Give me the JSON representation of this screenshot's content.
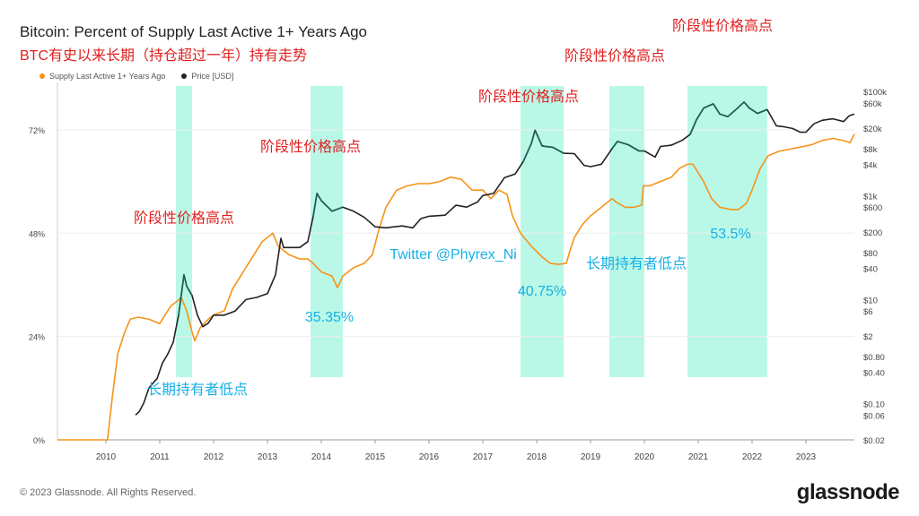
{
  "title": "Bitcoin: Percent of Supply Last Active 1+ Years Ago",
  "subtitle": "BTC有史以来长期（持仓超过一年）持有走势",
  "legend": [
    {
      "label": "Supply Last Active 1+ Years Ago",
      "color": "#f7931a"
    },
    {
      "label": "Price [USD]",
      "color": "#222222"
    }
  ],
  "footer": "© 2023 Glassnode. All Rights Reserved.",
  "logo": "glassnode",
  "colors": {
    "supply": "#f7931a",
    "price": "#222222",
    "price_high": "#1f5f55",
    "highlight": "#7ff2d4",
    "annot_red": "#e02020",
    "annot_blue": "#16b0e6"
  },
  "chart_data": {
    "type": "line",
    "x_ticks": [
      "2010",
      "2011",
      "2012",
      "2013",
      "2014",
      "2015",
      "2016",
      "2017",
      "2018",
      "2019",
      "2020",
      "2021",
      "2022",
      "2023"
    ],
    "y_left_ticks": [
      "0%",
      "24%",
      "48%",
      "72%"
    ],
    "y_left_range": [
      0,
      83
    ],
    "y_right_scale": "log",
    "y_right_ticks": [
      "$100k",
      "$60k",
      "$20k",
      "$8k",
      "$4k",
      "$1k",
      "$600",
      "$200",
      "$80",
      "$40",
      "$10",
      "$6",
      "$2",
      "$0.80",
      "$0.40",
      "$0.10",
      "$0.06",
      "$0.02"
    ],
    "y_right_range": [
      0.02,
      150000
    ],
    "x_range": [
      2009.1,
      2023.9
    ],
    "series": [
      {
        "name": "Supply Last Active 1+ Years Ago",
        "axis": "left",
        "points": [
          [
            2009.1,
            0
          ],
          [
            2010.03,
            0
          ],
          [
            2010.12,
            10
          ],
          [
            2010.22,
            20
          ],
          [
            2010.35,
            25
          ],
          [
            2010.45,
            28
          ],
          [
            2010.6,
            28.5
          ],
          [
            2010.8,
            28
          ],
          [
            2011.0,
            27
          ],
          [
            2011.1,
            29
          ],
          [
            2011.2,
            31
          ],
          [
            2011.4,
            33
          ],
          [
            2011.5,
            30
          ],
          [
            2011.6,
            25
          ],
          [
            2011.65,
            23
          ],
          [
            2011.75,
            26
          ],
          [
            2011.9,
            28
          ],
          [
            2012.0,
            29
          ],
          [
            2012.2,
            30
          ],
          [
            2012.35,
            35
          ],
          [
            2012.5,
            38
          ],
          [
            2012.7,
            42
          ],
          [
            2012.9,
            46
          ],
          [
            2013.0,
            47
          ],
          [
            2013.1,
            48
          ],
          [
            2013.2,
            45
          ],
          [
            2013.4,
            43
          ],
          [
            2013.6,
            42
          ],
          [
            2013.75,
            42
          ],
          [
            2013.85,
            41
          ],
          [
            2014.0,
            39
          ],
          [
            2014.2,
            38
          ],
          [
            2014.3,
            35.35
          ],
          [
            2014.4,
            38
          ],
          [
            2014.5,
            39
          ],
          [
            2014.6,
            40
          ],
          [
            2014.8,
            41
          ],
          [
            2014.95,
            43
          ],
          [
            2015.05,
            48
          ],
          [
            2015.2,
            54
          ],
          [
            2015.4,
            58
          ],
          [
            2015.6,
            59
          ],
          [
            2015.8,
            59.5
          ],
          [
            2016.0,
            59.5
          ],
          [
            2016.2,
            60
          ],
          [
            2016.4,
            61
          ],
          [
            2016.6,
            60.5
          ],
          [
            2016.8,
            58
          ],
          [
            2017.0,
            58
          ],
          [
            2017.15,
            56
          ],
          [
            2017.3,
            58
          ],
          [
            2017.45,
            57
          ],
          [
            2017.55,
            52
          ],
          [
            2017.7,
            48
          ],
          [
            2017.9,
            45
          ],
          [
            2018.1,
            42.5
          ],
          [
            2018.25,
            41
          ],
          [
            2018.4,
            40.75
          ],
          [
            2018.55,
            41
          ],
          [
            2018.62,
            44
          ],
          [
            2018.7,
            47
          ],
          [
            2018.85,
            50
          ],
          [
            2019.0,
            52
          ],
          [
            2019.2,
            54
          ],
          [
            2019.4,
            56
          ],
          [
            2019.5,
            55
          ],
          [
            2019.65,
            54
          ],
          [
            2019.8,
            54
          ],
          [
            2019.95,
            54.5
          ],
          [
            2019.98,
            59
          ],
          [
            2020.1,
            59
          ],
          [
            2020.3,
            60
          ],
          [
            2020.5,
            61
          ],
          [
            2020.65,
            63
          ],
          [
            2020.8,
            64
          ],
          [
            2020.9,
            64
          ],
          [
            2020.95,
            63
          ],
          [
            2021.1,
            60
          ],
          [
            2021.25,
            56
          ],
          [
            2021.4,
            54
          ],
          [
            2021.6,
            53.5
          ],
          [
            2021.75,
            53.5
          ],
          [
            2021.9,
            55
          ],
          [
            2022.0,
            58
          ],
          [
            2022.15,
            63
          ],
          [
            2022.3,
            66
          ],
          [
            2022.5,
            67
          ],
          [
            2022.7,
            67.5
          ],
          [
            2022.9,
            68
          ],
          [
            2023.1,
            68.5
          ],
          [
            2023.3,
            69.5
          ],
          [
            2023.5,
            70
          ],
          [
            2023.7,
            69.5
          ],
          [
            2023.82,
            69
          ],
          [
            2023.9,
            71
          ]
        ]
      },
      {
        "name": "Price [USD]",
        "axis": "right",
        "points": [
          [
            2010.55,
            0.06
          ],
          [
            2010.62,
            0.07
          ],
          [
            2010.7,
            0.1
          ],
          [
            2010.8,
            0.2
          ],
          [
            2010.88,
            0.25
          ],
          [
            2010.95,
            0.3
          ],
          [
            2011.05,
            0.6
          ],
          [
            2011.15,
            0.9
          ],
          [
            2011.25,
            1.5
          ],
          [
            2011.35,
            5
          ],
          [
            2011.45,
            30
          ],
          [
            2011.5,
            18
          ],
          [
            2011.6,
            12
          ],
          [
            2011.7,
            5
          ],
          [
            2011.8,
            3
          ],
          [
            2011.9,
            3.5
          ],
          [
            2012.0,
            5
          ],
          [
            2012.2,
            5
          ],
          [
            2012.4,
            6
          ],
          [
            2012.6,
            10
          ],
          [
            2012.8,
            11
          ],
          [
            2013.0,
            13
          ],
          [
            2013.15,
            30
          ],
          [
            2013.25,
            150
          ],
          [
            2013.3,
            100
          ],
          [
            2013.4,
            100
          ],
          [
            2013.6,
            100
          ],
          [
            2013.75,
            130
          ],
          [
            2013.85,
            400
          ],
          [
            2013.92,
            1100
          ],
          [
            2014.0,
            800
          ],
          [
            2014.2,
            500
          ],
          [
            2014.4,
            600
          ],
          [
            2014.6,
            500
          ],
          [
            2014.8,
            380
          ],
          [
            2015.0,
            250
          ],
          [
            2015.2,
            240
          ],
          [
            2015.5,
            260
          ],
          [
            2015.7,
            240
          ],
          [
            2015.85,
            360
          ],
          [
            2016.0,
            400
          ],
          [
            2016.3,
            420
          ],
          [
            2016.5,
            650
          ],
          [
            2016.7,
            600
          ],
          [
            2016.9,
            750
          ],
          [
            2017.0,
            1000
          ],
          [
            2017.2,
            1100
          ],
          [
            2017.4,
            2200
          ],
          [
            2017.6,
            2600
          ],
          [
            2017.75,
            4500
          ],
          [
            2017.9,
            10000
          ],
          [
            2017.97,
            18000
          ],
          [
            2018.1,
            9000
          ],
          [
            2018.3,
            8500
          ],
          [
            2018.5,
            6500
          ],
          [
            2018.7,
            6400
          ],
          [
            2018.88,
            3800
          ],
          [
            2019.0,
            3600
          ],
          [
            2019.2,
            4000
          ],
          [
            2019.4,
            8000
          ],
          [
            2019.5,
            11000
          ],
          [
            2019.7,
            9500
          ],
          [
            2019.9,
            7200
          ],
          [
            2020.0,
            7200
          ],
          [
            2020.2,
            5500
          ],
          [
            2020.3,
            8800
          ],
          [
            2020.5,
            9300
          ],
          [
            2020.7,
            11500
          ],
          [
            2020.85,
            15000
          ],
          [
            2020.97,
            29000
          ],
          [
            2021.1,
            48000
          ],
          [
            2021.28,
            58000
          ],
          [
            2021.4,
            37000
          ],
          [
            2021.55,
            33000
          ],
          [
            2021.7,
            45000
          ],
          [
            2021.85,
            63000
          ],
          [
            2021.95,
            48000
          ],
          [
            2022.1,
            38000
          ],
          [
            2022.28,
            45000
          ],
          [
            2022.45,
            22000
          ],
          [
            2022.6,
            21000
          ],
          [
            2022.75,
            19500
          ],
          [
            2022.9,
            16500
          ],
          [
            2023.0,
            16500
          ],
          [
            2023.15,
            24000
          ],
          [
            2023.3,
            28000
          ],
          [
            2023.5,
            30000
          ],
          [
            2023.7,
            26500
          ],
          [
            2023.8,
            34000
          ],
          [
            2023.9,
            37000
          ]
        ]
      }
    ],
    "highlight_bands": [
      [
        2011.3,
        2011.6
      ],
      [
        2013.8,
        2014.4
      ],
      [
        2017.7,
        2018.5
      ],
      [
        2019.35,
        2020.0
      ],
      [
        2020.8,
        2022.28
      ]
    ],
    "annotations": [
      {
        "text": "阶段性价格高点",
        "kind": "high",
        "x": 2011.45,
        "y_price": 300
      },
      {
        "text": "长期持有者低点",
        "kind": "low",
        "x": 2011.7,
        "y_price": 0.15
      },
      {
        "text": "阶段性价格高点",
        "kind": "high",
        "x": 2013.8,
        "y_price": 7000
      },
      {
        "text": "35.35%",
        "kind": "value",
        "x": 2014.15,
        "y_pct": 27.5
      },
      {
        "text": "阶段性价格高点",
        "kind": "high",
        "x": 2017.85,
        "y_price": 65000
      },
      {
        "text": "Twitter @Phyrex_Ni",
        "kind": "credit",
        "x": 2016.45,
        "y_pct": 42
      },
      {
        "text": "40.75%",
        "kind": "value",
        "x": 2018.1,
        "y_pct": 33.5
      },
      {
        "text": "阶段性价格高点",
        "kind": "high",
        "x": 2019.45,
        "y_price": 400000
      },
      {
        "text": "长期持有者低点",
        "kind": "low",
        "x": 2019.85,
        "y_price": 40
      },
      {
        "text": "阶段性价格高点",
        "kind": "high",
        "x": 2021.45,
        "y_price": 1500000
      },
      {
        "text": "53.5%",
        "kind": "value",
        "x": 2021.6,
        "y_pct": 46.8
      }
    ]
  }
}
